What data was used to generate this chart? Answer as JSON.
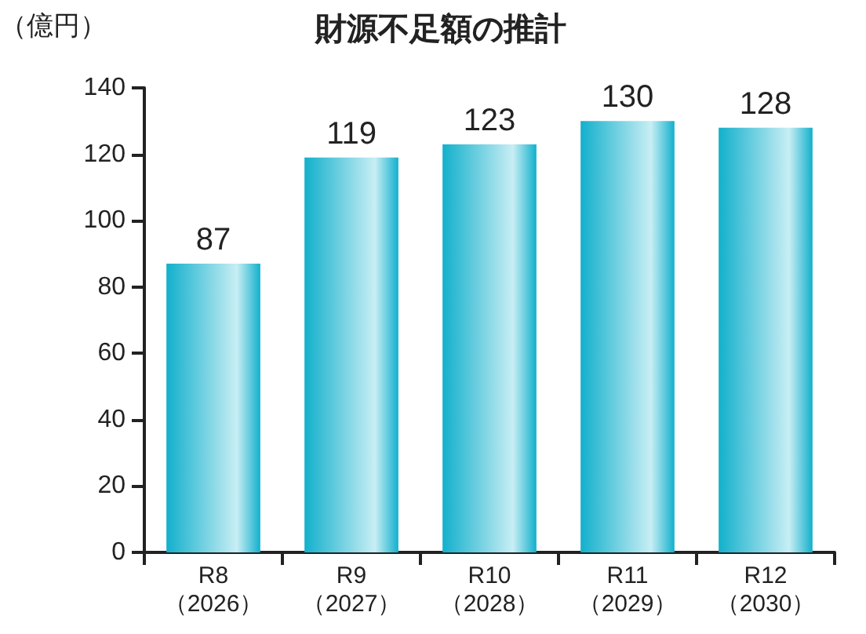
{
  "chart_data": {
    "type": "bar",
    "title": "財源不足額の推計",
    "ylabel": "（億円）",
    "categories": [
      "R8\n（2026）",
      "R9\n（2027）",
      "R10\n（2028）",
      "R11\n（2029）",
      "R12\n（2030）"
    ],
    "values": [
      87,
      119,
      123,
      130,
      128
    ],
    "color": "#12b0cc",
    "ylim": [
      0,
      140
    ],
    "yticks": [
      0,
      20,
      40,
      60,
      80,
      100,
      120,
      140
    ],
    "grid": false,
    "data_labels": true
  }
}
